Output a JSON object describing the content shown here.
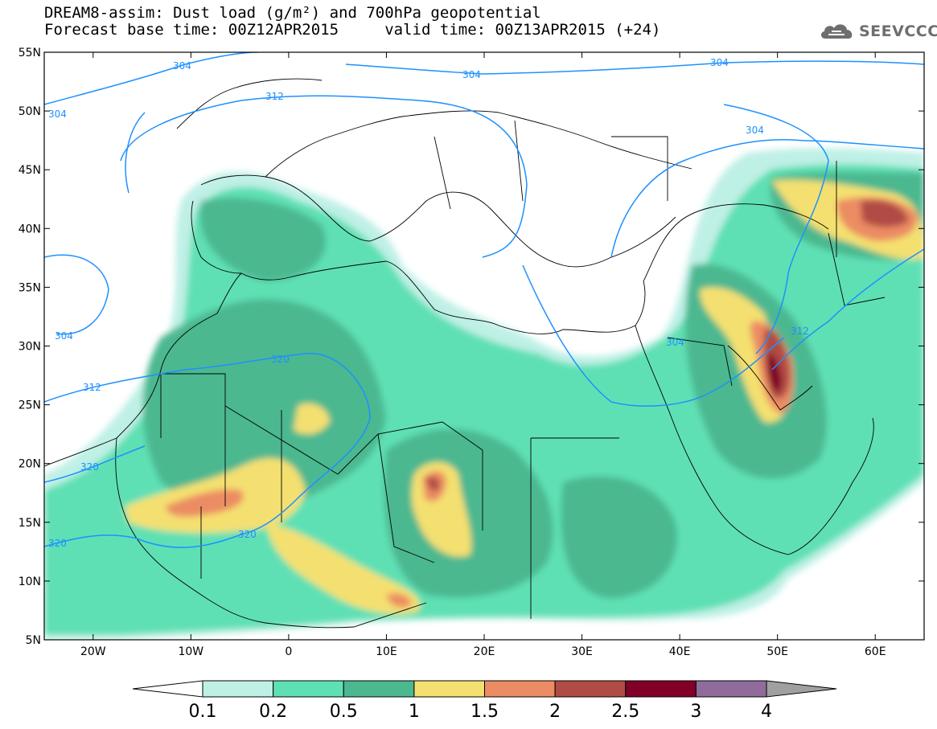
{
  "title": {
    "line1": "DREAM8-assim: Dust load (g/m²) and 700hPa geopotential",
    "line2": "Forecast base time: 00Z12APR2015     valid time: 00Z13APR2015 (+24)"
  },
  "logo": {
    "icon": "cloud-logo-icon",
    "text": "SEEVCCC"
  },
  "map": {
    "lon_range": [
      -25,
      65
    ],
    "lat_range": [
      5,
      55
    ],
    "lat_ticks": [
      "5N",
      "10N",
      "15N",
      "20N",
      "25N",
      "30N",
      "35N",
      "40N",
      "45N",
      "50N",
      "55N"
    ],
    "lon_ticks": [
      "20W",
      "10W",
      "0",
      "10E",
      "20E",
      "30E",
      "40E",
      "50E",
      "60E"
    ],
    "contour_labels": [
      "304",
      "304",
      "304",
      "312",
      "304",
      "304",
      "304",
      "320",
      "312",
      "312",
      "320",
      "320",
      "320",
      "304"
    ]
  },
  "colorbar": {
    "labels": [
      "0.1",
      "0.2",
      "0.5",
      "1",
      "1.5",
      "2",
      "2.5",
      "3",
      "4"
    ],
    "colors": [
      "#ffffff",
      "#bff0e6",
      "#5fe0b4",
      "#4cb890",
      "#f4e070",
      "#ec8c64",
      "#b04c44",
      "#800028",
      "#906c9c",
      "#a0a0a0"
    ]
  }
}
